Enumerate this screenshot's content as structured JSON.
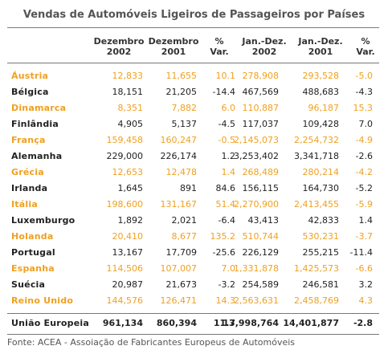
{
  "title": "Vendas de Automóveis Ligeiros de Passageiros por Países",
  "headers": [
    {
      "line1": "Dezembro",
      "line2": "2002"
    },
    {
      "line1": "Dezembro",
      "line2": "2001"
    },
    {
      "line1": "%",
      "line2": "Var."
    },
    {
      "line1": "Jan.-Dez.",
      "line2": "2002"
    },
    {
      "line1": "Jan.-Dez.",
      "line2": "2001"
    },
    {
      "line1": "%",
      "line2": "Var."
    }
  ],
  "rows": [
    {
      "country": "Áustria",
      "dez2002": "12,833",
      "dez2001": "11,655",
      "var_dez": "10.1",
      "jandez2002": "278,908",
      "jandez2001": "293,528",
      "var_ano": "-5.0"
    },
    {
      "country": "Bélgica",
      "dez2002": "18,151",
      "dez2001": "21,205",
      "var_dez": "-14.4",
      "jandez2002": "467,569",
      "jandez2001": "488,683",
      "var_ano": "-4.3"
    },
    {
      "country": "Dinamarca",
      "dez2002": "8,351",
      "dez2001": "7,882",
      "var_dez": "6.0",
      "jandez2002": "110,887",
      "jandez2001": "96,187",
      "var_ano": "15.3"
    },
    {
      "country": "Finlândia",
      "dez2002": "4,905",
      "dez2001": "5,137",
      "var_dez": "-4.5",
      "jandez2002": "117,037",
      "jandez2001": "109,428",
      "var_ano": "7.0"
    },
    {
      "country": "França",
      "dez2002": "159,458",
      "dez2001": "160,247",
      "var_dez": "-0.5",
      "jandez2002": "2,145,073",
      "jandez2001": "2,254,732",
      "var_ano": "-4.9"
    },
    {
      "country": "Alemanha",
      "dez2002": "229,000",
      "dez2001": "226,174",
      "var_dez": "1.2",
      "jandez2002": "3,253,402",
      "jandez2001": "3,341,718",
      "var_ano": "-2.6"
    },
    {
      "country": "Grécia",
      "dez2002": "12,653",
      "dez2001": "12,478",
      "var_dez": "1.4",
      "jandez2002": "268,489",
      "jandez2001": "280,214",
      "var_ano": "-4.2"
    },
    {
      "country": "Irlanda",
      "dez2002": "1,645",
      "dez2001": "891",
      "var_dez": "84.6",
      "jandez2002": "156,115",
      "jandez2001": "164,730",
      "var_ano": "-5.2"
    },
    {
      "country": "Itália",
      "dez2002": "198,600",
      "dez2001": "131,167",
      "var_dez": "51.4",
      "jandez2002": "2,270,900",
      "jandez2001": "2,413,455",
      "var_ano": "-5.9"
    },
    {
      "country": "Luxemburgo",
      "dez2002": "1,892",
      "dez2001": "2,021",
      "var_dez": "-6.4",
      "jandez2002": "43,413",
      "jandez2001": "42,833",
      "var_ano": "1.4"
    },
    {
      "country": "Holanda",
      "dez2002": "20,410",
      "dez2001": "8,677",
      "var_dez": "135.2",
      "jandez2002": "510,744",
      "jandez2001": "530,231",
      "var_ano": "-3.7"
    },
    {
      "country": "Portugal",
      "dez2002": "13,167",
      "dez2001": "17,709",
      "var_dez": "-25.6",
      "jandez2002": "226,129",
      "jandez2001": "255,215",
      "var_ano": "-11.4"
    },
    {
      "country": "Espanha",
      "dez2002": "114,506",
      "dez2001": "107,007",
      "var_dez": "7.0",
      "jandez2002": "1,331,878",
      "jandez2001": "1,425,573",
      "var_ano": "-6.6"
    },
    {
      "country": "Suécia",
      "dez2002": "20,987",
      "dez2001": "21,673",
      "var_dez": "-3.2",
      "jandez2002": "254,589",
      "jandez2001": "246,581",
      "var_ano": "3.2"
    },
    {
      "country": "Reino Unido",
      "dez2002": "144,576",
      "dez2001": "126,471",
      "var_dez": "14.3",
      "jandez2002": "2,563,631",
      "jandez2001": "2,458,769",
      "var_ano": "4.3"
    }
  ],
  "total": {
    "country": "União Europeia",
    "dez2002": "961,134",
    "dez2001": "860,394",
    "var_dez": "11.7",
    "jandez2002": "13,998,764",
    "jandez2001": "14,401,877",
    "var_ano": "-2.8"
  },
  "source": "Fonte: ACEA - Assoiação de Fabricantes Europeus de Automóveis",
  "colors": {
    "highlight": "#f0a020",
    "text": "#222222",
    "title": "#555555"
  }
}
